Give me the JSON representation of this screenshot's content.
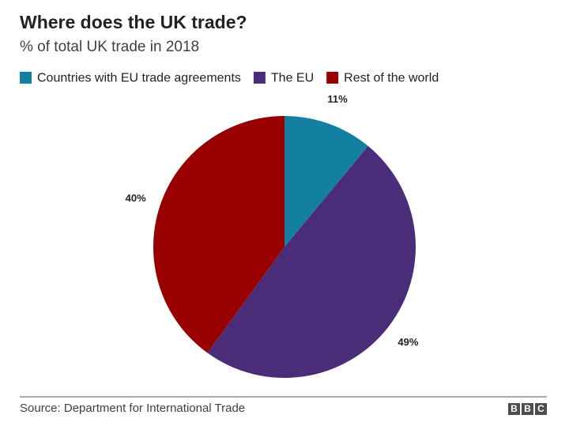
{
  "chart_data": {
    "type": "pie",
    "title": "Where does the UK trade?",
    "subtitle": "% of total UK trade in 2018",
    "categories": [
      "Countries with EU trade agreements",
      "The EU",
      "Rest of the world"
    ],
    "values": [
      11,
      49,
      40
    ],
    "value_labels": [
      "11%",
      "49%",
      "40%"
    ],
    "colors": [
      "#1380a1",
      "#4b2c79",
      "#990000"
    ],
    "source": "Source: Department for International Trade",
    "logo": [
      "B",
      "B",
      "C"
    ]
  }
}
